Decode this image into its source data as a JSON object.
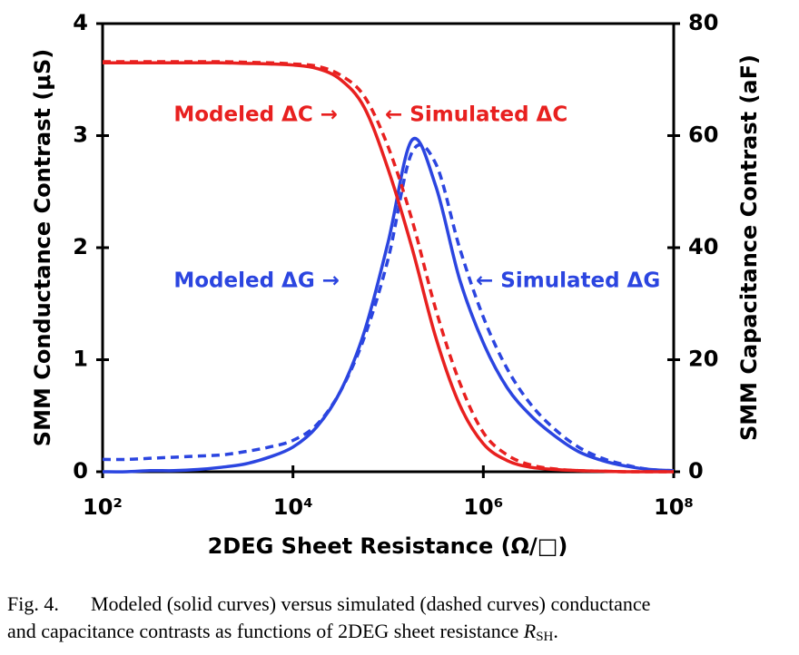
{
  "chart_data": {
    "type": "line",
    "x_label": "2DEG Sheet Resistance (Ω/□)",
    "y_label": "SMM Conductance Contrast (μS)",
    "y2_label": "SMM Capacitance Contrast (aF)",
    "x_scale": "log",
    "xlim": [
      100,
      100000000
    ],
    "xticks": [
      {
        "value": 100,
        "label": "10²"
      },
      {
        "value": 10000,
        "label": "10⁴"
      },
      {
        "value": 1000000,
        "label": "10⁶"
      },
      {
        "value": 100000000,
        "label": "10⁸"
      }
    ],
    "ylim": [
      0,
      4
    ],
    "yticks": [
      0,
      1,
      2,
      3,
      4
    ],
    "y2lim": [
      0,
      80
    ],
    "y2ticks": [
      0,
      20,
      40,
      60,
      80
    ],
    "y_color": "#2b45e0",
    "y2_color": "#e8201f",
    "x": [
      100,
      178,
      316,
      562,
      1000,
      1778,
      3162,
      5623,
      10000,
      17783,
      31623,
      56234,
      100000,
      177828,
      316228,
      562341,
      1000000,
      1778279,
      3162278,
      5623413,
      10000000,
      17782794,
      31622777,
      56234133,
      100000000
    ],
    "series": [
      {
        "name": "Modeled ΔG",
        "color": "#2b45e0",
        "dash": false,
        "axis": "y",
        "values": [
          0,
          0,
          0.01,
          0.01,
          0.02,
          0.04,
          0.07,
          0.13,
          0.22,
          0.4,
          0.72,
          1.25,
          2.05,
          2.96,
          2.55,
          1.72,
          1.15,
          0.75,
          0.5,
          0.32,
          0.18,
          0.1,
          0.05,
          0.02,
          0.01
        ]
      },
      {
        "name": "Simulated ΔG",
        "color": "#2b45e0",
        "dash": true,
        "axis": "y",
        "values": [
          0.11,
          0.11,
          0.12,
          0.13,
          0.14,
          0.15,
          0.18,
          0.22,
          0.28,
          0.42,
          0.72,
          1.2,
          1.9,
          2.85,
          2.75,
          2.0,
          1.38,
          0.92,
          0.6,
          0.38,
          0.22,
          0.12,
          0.06,
          0.02,
          0.01
        ]
      },
      {
        "name": "Modeled ΔC",
        "color": "#e8201f",
        "dash": false,
        "axis": "y2",
        "values": [
          73,
          73,
          73,
          73,
          73,
          73,
          72.9,
          72.8,
          72.6,
          72,
          70,
          65,
          54,
          40,
          24,
          12,
          5,
          2,
          0.8,
          0.4,
          0.2,
          0.1,
          0,
          0,
          0
        ]
      },
      {
        "name": "Simulated ΔC",
        "color": "#e8201f",
        "dash": true,
        "axis": "y2",
        "values": [
          73.2,
          73.2,
          73.2,
          73.2,
          73.2,
          73.2,
          73.1,
          73,
          72.8,
          72.4,
          70.8,
          67,
          58,
          45,
          29,
          16,
          7,
          3,
          1.2,
          0.5,
          0.2,
          0.1,
          0,
          0,
          0
        ]
      }
    ],
    "annotations": [
      {
        "text": "Modeled ΔC →",
        "color": "#e8201f"
      },
      {
        "text": "← Simulated ΔC",
        "color": "#e8201f"
      },
      {
        "text": "Modeled ΔG →",
        "color": "#2b45e0"
      },
      {
        "text": "← Simulated ΔG",
        "color": "#2b45e0"
      }
    ]
  },
  "caption": {
    "label": "Fig. 4.",
    "line1": "Modeled (solid curves) versus simulated (dashed curves) conductance",
    "line2": "and capacitance contrasts as functions of 2DEG sheet resistance",
    "symbol": "R",
    "subscript": "SH",
    "end": "."
  }
}
